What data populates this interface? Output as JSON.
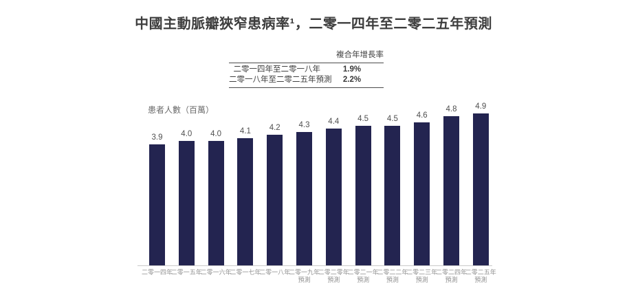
{
  "title": "中國主動脈瓣狹窄患病率¹，二零一四年至二零二五年預測",
  "cagr_table": {
    "header": "複合年增長率",
    "rows": [
      {
        "label": "二零一四年至二零一八年",
        "value": "1.9%"
      },
      {
        "label": "二零一八年至二零二五年預測",
        "value": "2.2%"
      }
    ]
  },
  "chart_data": {
    "type": "bar",
    "title": "中國主動脈瓣狹窄患病率¹，二零一四年至二零二五年預測",
    "ylabel": "患者人數（百萬）",
    "xlabel": "",
    "categories": [
      "二零一四年",
      "二零一五年",
      "二零一六年",
      "二零一七年",
      "二零一八年",
      "二零一九年",
      "二零二零年",
      "二零二一年",
      "二零二二年",
      "二零二三年",
      "二零二四年",
      "二零二五年"
    ],
    "tick_suffix": {
      "text": "預測",
      "from_index": 5
    },
    "values": [
      3.9,
      4.0,
      4.0,
      4.1,
      4.2,
      4.3,
      4.4,
      4.5,
      4.5,
      4.6,
      4.8,
      4.9
    ],
    "ylim": [
      0,
      5
    ],
    "grid": false,
    "legend": null,
    "bar_color": "#232450"
  },
  "colors": {
    "bar": "#232450",
    "title_text": "#3d3d3d",
    "table_text": "#404040",
    "table_rule": "#4b4b4b",
    "value_label": "#4f4f4f",
    "tick_label": "#909090",
    "axis_label": "#6a6a6a",
    "baseline": "#c9c9c9",
    "background": "#ffffff"
  }
}
